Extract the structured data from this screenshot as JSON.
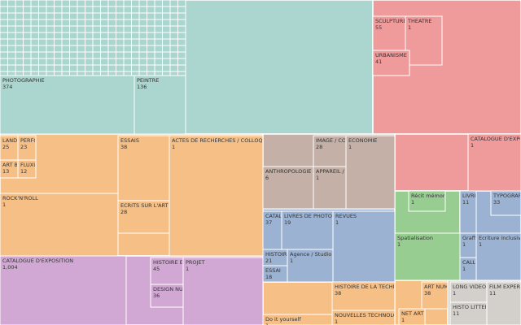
{
  "chart_data": {
    "type": "treemap",
    "groups": [
      {
        "color": "#aad6cf",
        "leaves": [
          {
            "label": "PHOTOGRAPHIE",
            "value": 374
          },
          {
            "label": "PEINTRE",
            "value": 136
          }
        ]
      },
      {
        "color": "#ef9a9b",
        "leaves": [
          {
            "label": "SCULPTURE",
            "value": 55
          },
          {
            "label": "THEATRE",
            "value": 1
          },
          {
            "label": "URBANISME",
            "value": 41
          },
          {
            "label": "CATALOGUE D'EXPOSITION",
            "value": 1
          }
        ]
      },
      {
        "color": "#f6bf85",
        "leaves": [
          {
            "label": "LAND ART",
            "value": 25
          },
          {
            "label": "PERFO",
            "value": 23
          },
          {
            "label": "ESSAIS",
            "value": 38
          },
          {
            "label": "ACTES DE RECHERCHES / COLLOQUES",
            "value": 1
          },
          {
            "label": "ECRITS SUR L'ART",
            "value": 28
          },
          {
            "label": "ART BR",
            "value": 13
          },
          {
            "label": "FLUXU",
            "value": 12
          },
          {
            "label": "ROCK'N'ROLL",
            "value": 1
          },
          {
            "label": "HISTOIRE DE LA TECHNIQUE",
            "value": 38
          },
          {
            "label": "NOUVELLES TECHNOLOGIES",
            "value": 1
          },
          {
            "label": "Do it yourself",
            "value": 1
          },
          {
            "label": "ART NUM",
            "value": 38
          },
          {
            "label": "NET ART",
            "value": 1
          }
        ]
      },
      {
        "color": "#d1a7d3",
        "leaves": [
          {
            "label": "CATALOGUE D'EXPOSITION",
            "value": 1004,
            "value_label": "1,004"
          },
          {
            "label": "HISTOIRE ET T",
            "value": 45
          },
          {
            "label": "DESIGN NUM",
            "value": 36
          },
          {
            "label": "PROJET",
            "value": 1
          }
        ]
      },
      {
        "color": "#c4b0a7",
        "leaves": [
          {
            "label": "IMAGE / COMP",
            "value": 28
          },
          {
            "label": "ECONOMIE",
            "value": 1
          },
          {
            "label": "ANTHROPOLOGIE",
            "value": 6
          },
          {
            "label": "APPAREIL / MI",
            "value": 1
          }
        ]
      },
      {
        "color": "#9bb2d3",
        "leaves": [
          {
            "label": "CATALO",
            "value": 37
          },
          {
            "label": "LIVRES DE PHOTOGRAPHIE",
            "value": 19
          },
          {
            "label": "REVUES",
            "value": 1
          },
          {
            "label": "HISTOIRE",
            "value": 21
          },
          {
            "label": "Agence / Studio",
            "value": 1
          },
          {
            "label": "ESSAI",
            "value": 18
          },
          {
            "label": "LIVRE",
            "value": 11
          },
          {
            "label": "TYPOGRAPHIE",
            "value": 33
          },
          {
            "label": "Graffiti",
            "value": 1
          },
          {
            "label": "Ecriture inclusive",
            "value": 1
          },
          {
            "label": "CALLI",
            "value": 1
          }
        ]
      },
      {
        "color": "#98cd91",
        "leaves": [
          {
            "label": "Récit mémoriel",
            "value": 1
          },
          {
            "label": "Spatialisation",
            "value": 1
          }
        ]
      },
      {
        "color": "#d3d0cb",
        "leaves": [
          {
            "label": "LONG VIDEO",
            "value": 1
          },
          {
            "label": "FILM EXPERIM",
            "value": 11
          },
          {
            "label": "HISTO LITTERAT",
            "value": 11
          }
        ]
      }
    ]
  }
}
